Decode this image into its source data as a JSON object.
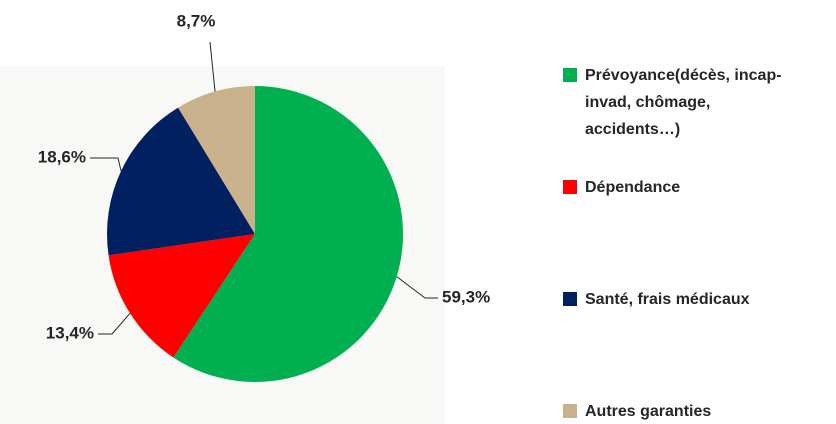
{
  "chart_data": {
    "type": "pie",
    "categories": [
      "Prévoyance(décès, incap-invad, chômage, accidents…)",
      "Dépendance",
      "Santé, frais médicaux",
      "Autres garanties"
    ],
    "values": [
      59.3,
      13.4,
      18.6,
      8.7
    ],
    "value_labels": [
      "59,3%",
      "13,4%",
      "18,6%",
      "8,7%"
    ],
    "colors": [
      "#00b050",
      "#ff0000",
      "#002060",
      "#c8b18b"
    ],
    "legend": "right"
  }
}
